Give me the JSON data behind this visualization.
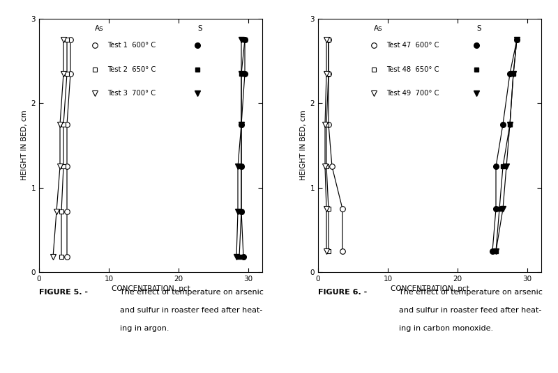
{
  "fig5": {
    "ylabel": "HEIGHT IN BED, cm",
    "xlabel": "CONCENTRATION, pct",
    "xlim": [
      0,
      32
    ],
    "ylim": [
      0,
      3
    ],
    "xticks": [
      0,
      10,
      20,
      30
    ],
    "yticks": [
      0,
      1,
      2,
      3
    ],
    "legend_header_as": "As",
    "legend_header_s": "S",
    "tests": [
      "Test 1  600° C",
      "Test 2  650° C",
      "Test 3  700° C"
    ],
    "as_heights": [
      0.18,
      0.72,
      1.25,
      1.75,
      2.35,
      2.75
    ],
    "as_t1": [
      4.0,
      4.0,
      4.0,
      4.0,
      4.5,
      4.5
    ],
    "as_t2": [
      3.2,
      3.2,
      3.5,
      3.5,
      4.0,
      4.0
    ],
    "as_t3": [
      2.0,
      2.5,
      3.0,
      3.0,
      3.5,
      3.5
    ],
    "s_heights": [
      0.18,
      0.72,
      1.25,
      1.75,
      2.35,
      2.75
    ],
    "s_t1": [
      29.3,
      29.0,
      29.0,
      29.0,
      29.5,
      29.5
    ],
    "s_t2": [
      28.7,
      29.0,
      29.0,
      29.0,
      29.0,
      29.5
    ],
    "s_t3": [
      28.3,
      28.5,
      28.5,
      29.0,
      29.0,
      29.0
    ],
    "fig_label": "FIGURE 5. -",
    "caption_line1": "The effect of temperature on arsenic",
    "caption_line2": "and sulfur in roaster feed after heat-",
    "caption_line3": "ing in argon."
  },
  "fig6": {
    "ylabel": "HEIGHT IN BED, cm",
    "xlabel": "CONCENTRATION, pct",
    "xlim": [
      0,
      32
    ],
    "ylim": [
      0,
      3
    ],
    "xticks": [
      0,
      10,
      20,
      30
    ],
    "yticks": [
      0,
      1,
      2,
      3
    ],
    "legend_header_as": "As",
    "legend_header_s": "S",
    "tests": [
      "Test 47  600° C",
      "Test 48  650° C",
      "Test 49  700° C"
    ],
    "as_heights": [
      0.25,
      0.75,
      1.25,
      1.75,
      2.35,
      2.75
    ],
    "as_t1": [
      3.5,
      3.5,
      2.0,
      1.5,
      1.5,
      1.5
    ],
    "as_t2": [
      1.5,
      1.5,
      1.2,
      1.2,
      1.5,
      1.5
    ],
    "as_t3": [
      1.2,
      1.2,
      1.0,
      1.0,
      1.2,
      1.2
    ],
    "s_heights": [
      0.25,
      0.75,
      1.25,
      1.75,
      2.35,
      2.75
    ],
    "s_t1": [
      25.0,
      25.5,
      25.5,
      26.5,
      27.5,
      28.5
    ],
    "s_t2": [
      25.5,
      26.0,
      26.5,
      27.5,
      28.0,
      28.5
    ],
    "s_t3": [
      25.5,
      26.5,
      27.0,
      27.5,
      28.0,
      28.5
    ],
    "fig_label": "FIGURE 6. -",
    "caption_line1": "The effect of temperature on arsenic",
    "caption_line2": "and sulfur in roaster feed after heat-",
    "caption_line3": "ing in carbon monoxide."
  },
  "marker_size": 5.5,
  "line_width": 0.85,
  "font_size": 7.5,
  "caption_font_size": 8.0,
  "legend_font_size": 7.2,
  "legend_header_size": 7.5
}
